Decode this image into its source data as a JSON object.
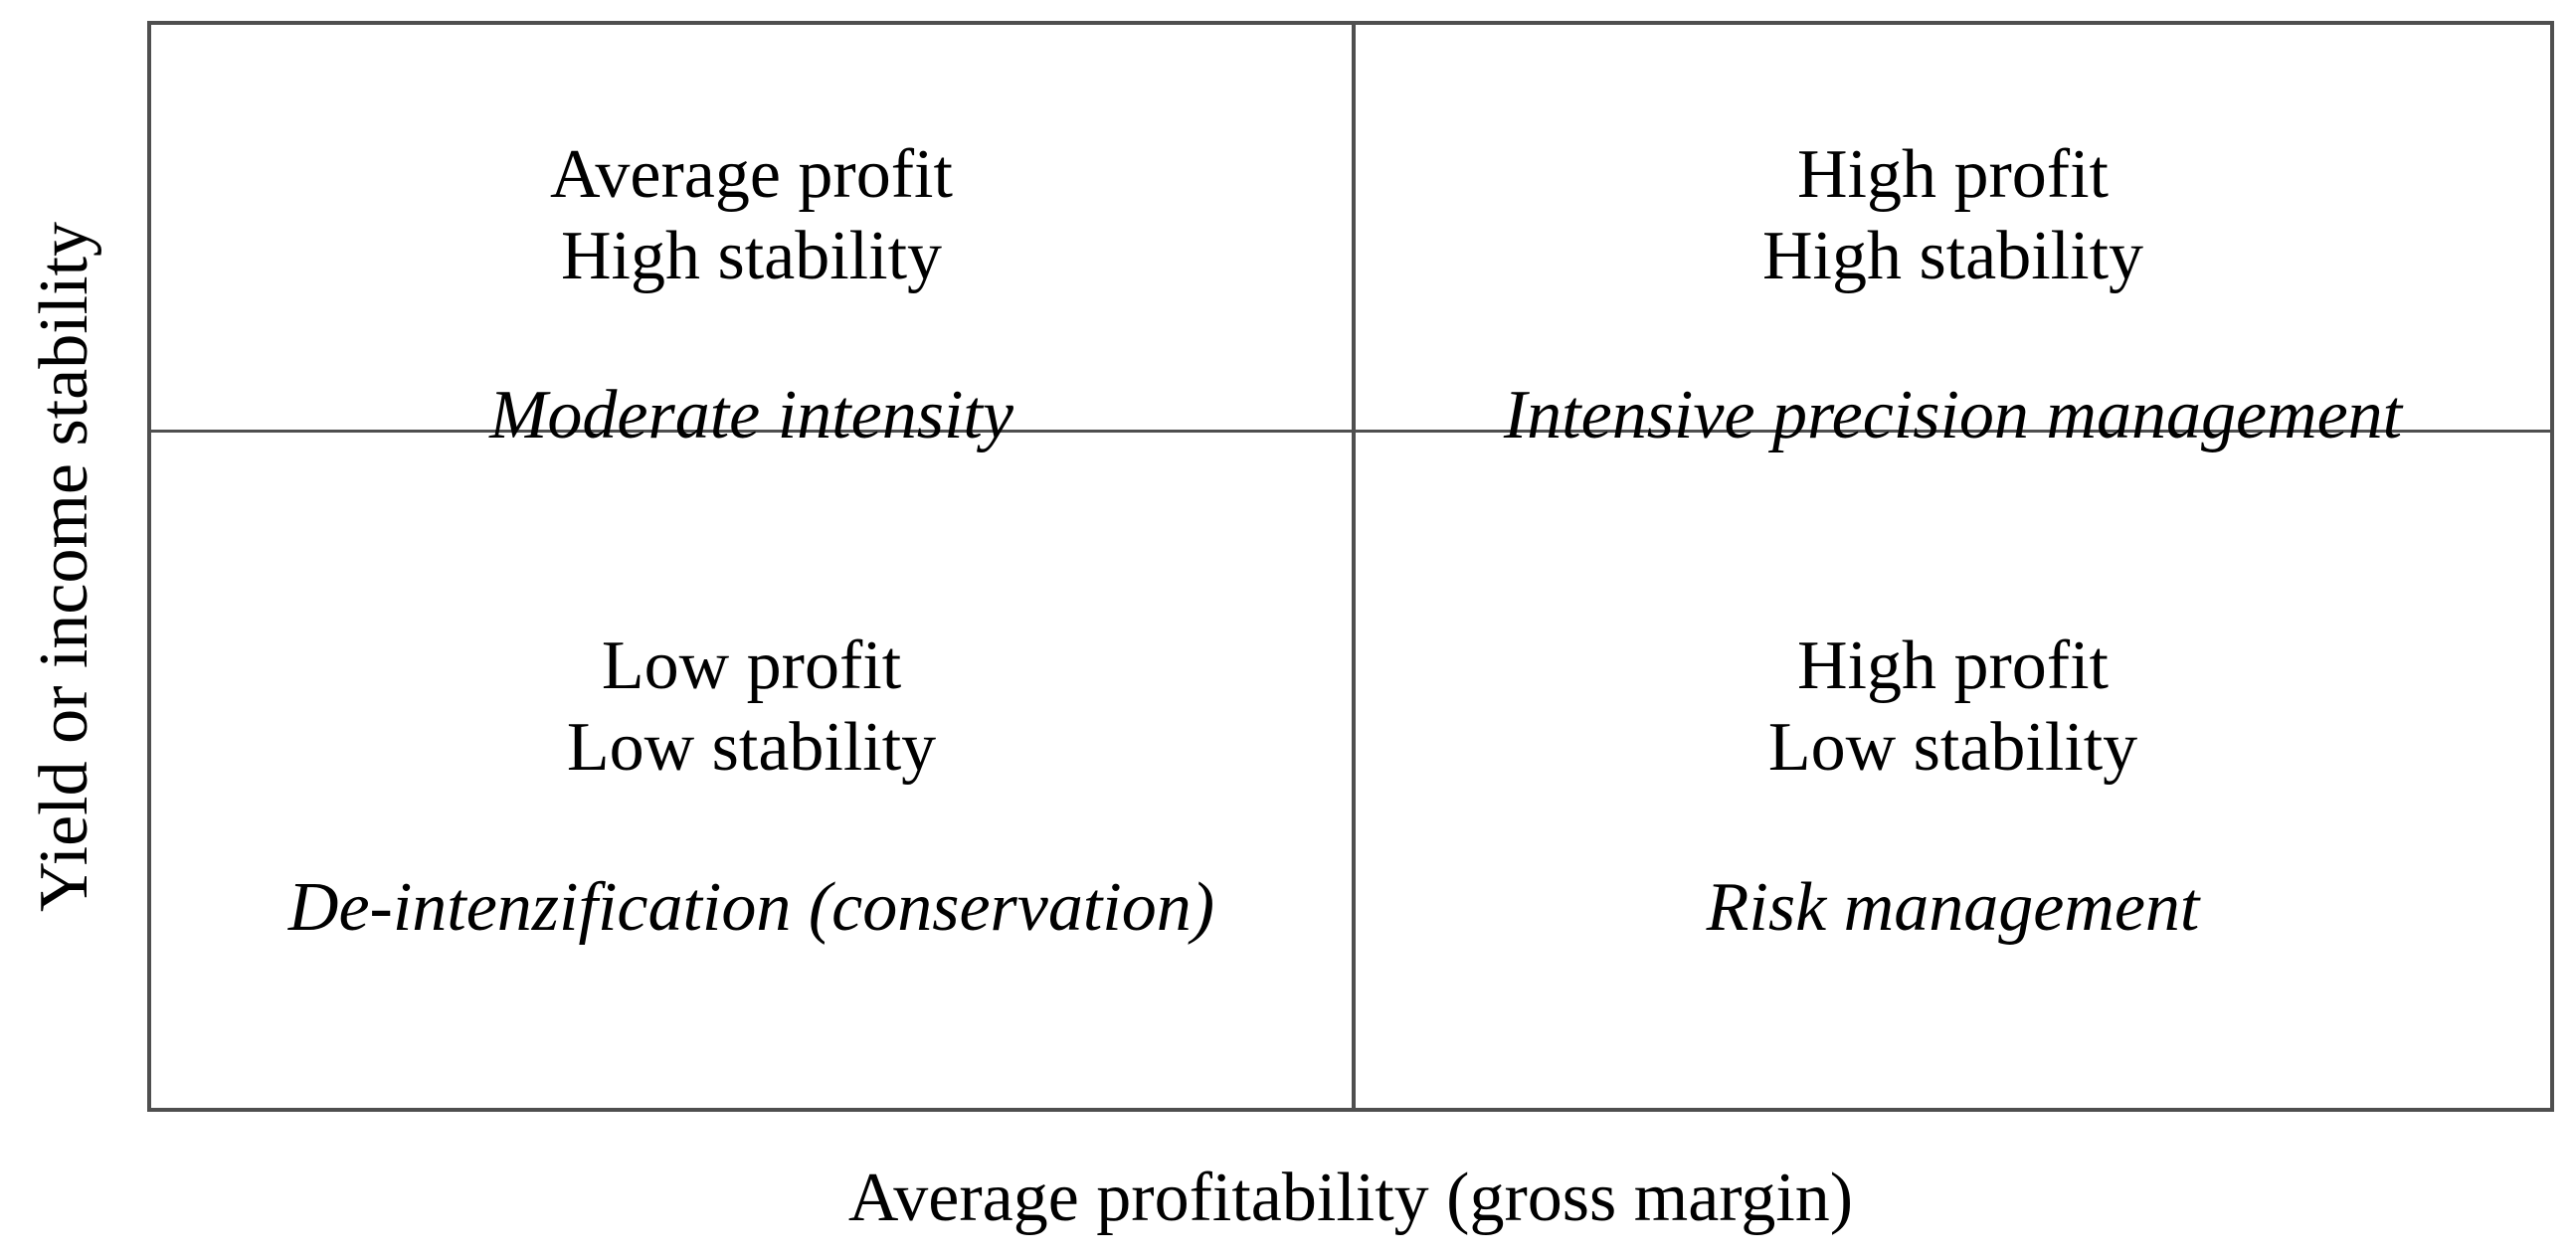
{
  "axes": {
    "x_label": "Average profitability (gross margin)",
    "y_label": "Yield or income stability"
  },
  "quadrants": {
    "top_left": {
      "line1": "Average profit",
      "line2": "High stability",
      "strategy": "Moderate intensity"
    },
    "top_right": {
      "line1": "High profit",
      "line2": "High stability",
      "strategy": "Intensive precision management"
    },
    "bottom_left": {
      "line1": "Low profit",
      "line2": "Low stability",
      "strategy": "De-intenzification (conservation)"
    },
    "bottom_right": {
      "line1": "High profit",
      "line2": "Low stability",
      "strategy": "Risk management"
    }
  },
  "colors": {
    "border": "#4f4f4f",
    "text": "#000000",
    "background": "#ffffff"
  }
}
